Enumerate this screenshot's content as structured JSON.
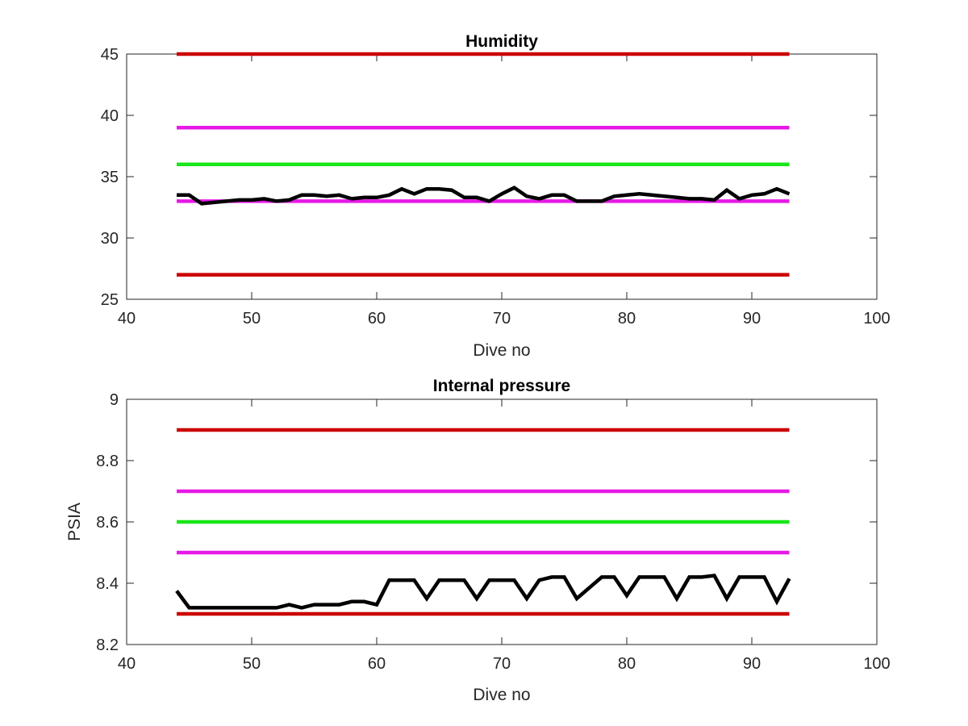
{
  "chart_data": [
    {
      "type": "line",
      "title": "Humidity",
      "xlabel": "Dive no",
      "ylabel": "",
      "xlim": [
        40,
        100
      ],
      "ylim": [
        25,
        45
      ],
      "xticks": [
        "40",
        "50",
        "60",
        "70",
        "80",
        "90",
        "100"
      ],
      "yticks": [
        "25",
        "30",
        "35",
        "40",
        "45"
      ],
      "grid": false,
      "series": [
        {
          "color": "#cc0000",
          "x": [
            44,
            93
          ],
          "values": [
            45,
            45
          ]
        },
        {
          "color": "#e619e6",
          "x": [
            44,
            93
          ],
          "values": [
            39,
            39
          ]
        },
        {
          "color": "#19e619",
          "x": [
            44,
            93
          ],
          "values": [
            36,
            36
          ]
        },
        {
          "color": "#e619e6",
          "x": [
            44,
            93
          ],
          "values": [
            33,
            33
          ]
        },
        {
          "color": "#cc0000",
          "x": [
            44,
            93
          ],
          "values": [
            27,
            27
          ]
        },
        {
          "color": "#000000",
          "x": [
            44,
            45,
            46,
            47,
            48,
            49,
            50,
            51,
            52,
            53,
            54,
            55,
            56,
            57,
            58,
            59,
            60,
            61,
            62,
            63,
            64,
            65,
            66,
            67,
            68,
            69,
            70,
            71,
            72,
            73,
            74,
            75,
            76,
            77,
            78,
            79,
            80,
            81,
            82,
            83,
            84,
            85,
            86,
            87,
            88,
            89,
            90,
            91,
            92,
            93
          ],
          "values": [
            33.5,
            33.5,
            32.8,
            32.9,
            33.0,
            33.1,
            33.1,
            33.2,
            33.0,
            33.1,
            33.5,
            33.5,
            33.4,
            33.5,
            33.2,
            33.3,
            33.3,
            33.5,
            34.0,
            33.6,
            34.0,
            34.0,
            33.9,
            33.3,
            33.3,
            33.0,
            33.6,
            34.1,
            33.4,
            33.2,
            33.5,
            33.5,
            33.0,
            33.0,
            33.0,
            33.4,
            33.5,
            33.6,
            33.5,
            33.4,
            33.3,
            33.2,
            33.2,
            33.1,
            33.9,
            33.2,
            33.5,
            33.6,
            34.0,
            33.6
          ]
        }
      ]
    },
    {
      "type": "line",
      "title": "Internal pressure",
      "xlabel": "Dive no",
      "ylabel": "PSIA",
      "xlim": [
        40,
        100
      ],
      "ylim": [
        8.2,
        9.0
      ],
      "xticks": [
        "40",
        "50",
        "60",
        "70",
        "80",
        "90",
        "100"
      ],
      "yticks": [
        "8.2",
        "8.4",
        "8.6",
        "8.8",
        "9"
      ],
      "grid": false,
      "series": [
        {
          "color": "#cc0000",
          "x": [
            44,
            93
          ],
          "values": [
            8.9,
            8.9
          ]
        },
        {
          "color": "#e619e6",
          "x": [
            44,
            93
          ],
          "values": [
            8.7,
            8.7
          ]
        },
        {
          "color": "#19e619",
          "x": [
            44,
            93
          ],
          "values": [
            8.6,
            8.6
          ]
        },
        {
          "color": "#e619e6",
          "x": [
            44,
            93
          ],
          "values": [
            8.5,
            8.5
          ]
        },
        {
          "color": "#cc0000",
          "x": [
            44,
            93
          ],
          "values": [
            8.3,
            8.3
          ]
        },
        {
          "color": "#000000",
          "x": [
            44,
            45,
            46,
            47,
            48,
            49,
            50,
            51,
            52,
            53,
            54,
            55,
            56,
            57,
            58,
            59,
            60,
            61,
            62,
            63,
            64,
            65,
            66,
            67,
            68,
            69,
            70,
            71,
            72,
            73,
            74,
            75,
            76,
            77,
            78,
            79,
            80,
            81,
            82,
            83,
            84,
            85,
            86,
            87,
            88,
            89,
            90,
            91,
            92,
            93
          ],
          "values": [
            8.375,
            8.32,
            8.32,
            8.32,
            8.32,
            8.32,
            8.32,
            8.32,
            8.32,
            8.33,
            8.32,
            8.33,
            8.33,
            8.33,
            8.34,
            8.34,
            8.33,
            8.41,
            8.41,
            8.41,
            8.35,
            8.41,
            8.41,
            8.41,
            8.35,
            8.41,
            8.41,
            8.41,
            8.35,
            8.41,
            8.42,
            8.42,
            8.35,
            8.385,
            8.42,
            8.42,
            8.36,
            8.42,
            8.42,
            8.42,
            8.35,
            8.42,
            8.42,
            8.425,
            8.35,
            8.42,
            8.42,
            8.42,
            8.34,
            8.415
          ]
        }
      ]
    }
  ]
}
